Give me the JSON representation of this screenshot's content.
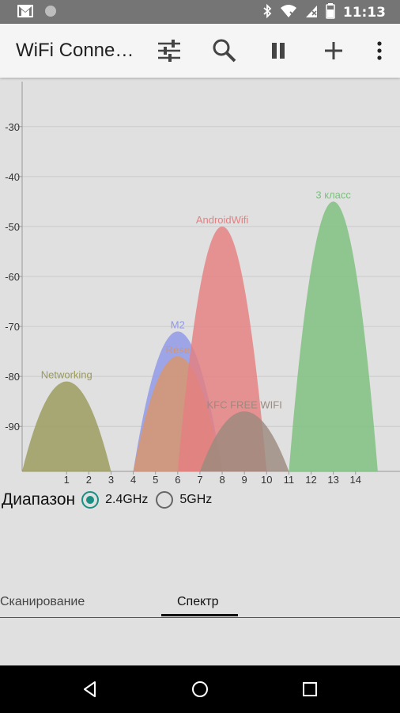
{
  "status_bar": {
    "time": "11:13",
    "icons": [
      "gmail-icon",
      "circle-notification-icon",
      "bluetooth-icon",
      "wifi-icon",
      "signal-icon",
      "battery-icon"
    ]
  },
  "app_bar": {
    "title": "WiFi Conne…",
    "actions": [
      "filter-sliders-icon",
      "search-icon",
      "pause-icon",
      "add-icon",
      "more-vert-icon"
    ]
  },
  "band": {
    "label": "Диапазон",
    "options": [
      {
        "label": "2.4GHz",
        "selected": true
      },
      {
        "label": "5GHz",
        "selected": false
      }
    ]
  },
  "tabs": [
    {
      "label": "Сканирование",
      "active": false
    },
    {
      "label": "Спектр",
      "active": true
    }
  ],
  "chart_data": {
    "type": "area",
    "y_ticks": [
      "-30",
      "-40",
      "-50",
      "-60",
      "-70",
      "-80",
      "-90"
    ],
    "ylim": [
      -99,
      -21
    ],
    "x_ticks": [
      "1",
      "2",
      "3",
      "4",
      "5",
      "6",
      "7",
      "8",
      "9",
      "10",
      "11",
      "12",
      "13",
      "14"
    ],
    "xlim": [
      -1,
      16
    ],
    "series": [
      {
        "name": "Networking",
        "channel": 1,
        "signal": -81,
        "color": "#9a9a5c"
      },
      {
        "name": "M2",
        "channel": 6,
        "signal": -71,
        "color": "#8f97e8"
      },
      {
        "name": "Rése",
        "channel": 6,
        "signal": -76,
        "color": "#d8956a"
      },
      {
        "name": "AndroidWifi",
        "channel": 8,
        "signal": -50,
        "color": "#e57f80"
      },
      {
        "name": "KFC FREE WIFI",
        "channel": 9,
        "signal": -87,
        "color": "#9b8a7e"
      },
      {
        "name": "3 класс",
        "channel": 13,
        "signal": -45,
        "color": "#7cc07e"
      }
    ]
  }
}
